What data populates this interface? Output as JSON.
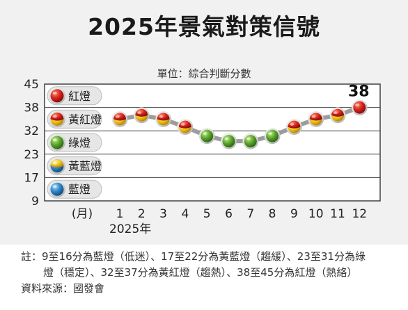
{
  "title": "2025年景氣對策信號",
  "unit": "單位：綜合判斷分數",
  "chart_data": {
    "type": "line",
    "title": "2025年景氣對策信號",
    "ylabel": "單位：綜合判斷分數",
    "x_unit": "(月)",
    "year_label": "2025年",
    "categories": [
      "1",
      "2",
      "3",
      "4",
      "5",
      "6",
      "7",
      "8",
      "9",
      "10",
      "11",
      "12"
    ],
    "values": [
      35,
      36,
      35,
      33,
      30,
      28,
      28,
      30,
      33,
      35,
      36,
      38
    ],
    "signals": [
      "黃紅燈",
      "黃紅燈",
      "黃紅燈",
      "黃紅燈",
      "綠燈",
      "綠燈",
      "綠燈",
      "綠燈",
      "黃紅燈",
      "黃紅燈",
      "黃紅燈",
      "紅燈"
    ],
    "highlight_label": "38",
    "y_ticks": [
      "45",
      "38",
      "32",
      "23",
      "17",
      "9"
    ],
    "bands": [
      {
        "name": "紅燈",
        "icon": "red-light-icon",
        "from": 38,
        "to": 45
      },
      {
        "name": "黃紅燈",
        "icon": "yellow-red-light-icon",
        "from": 32,
        "to": 38
      },
      {
        "name": "綠燈",
        "icon": "green-light-icon",
        "from": 23,
        "to": 32
      },
      {
        "name": "黃藍燈",
        "icon": "yellow-blue-light-icon",
        "from": 17,
        "to": 23
      },
      {
        "name": "藍燈",
        "icon": "blue-light-icon",
        "from": 9,
        "to": 17
      }
    ],
    "grid": true
  },
  "colors": {
    "red": "#d8231b",
    "yellow": "#f2c21b",
    "green": "#5aa52c",
    "blue": "#2e86c8",
    "line": "#9c9c9c"
  },
  "note": {
    "line1": "註：9至16分為藍燈（低迷）、17至22分為黃藍燈（趨緩）、23至31分為綠",
    "line2": "燈（穩定）、32至37分為黃紅燈（趨熱）、38至45分為紅燈（熱絡）",
    "line3": "資料來源：國發會"
  }
}
